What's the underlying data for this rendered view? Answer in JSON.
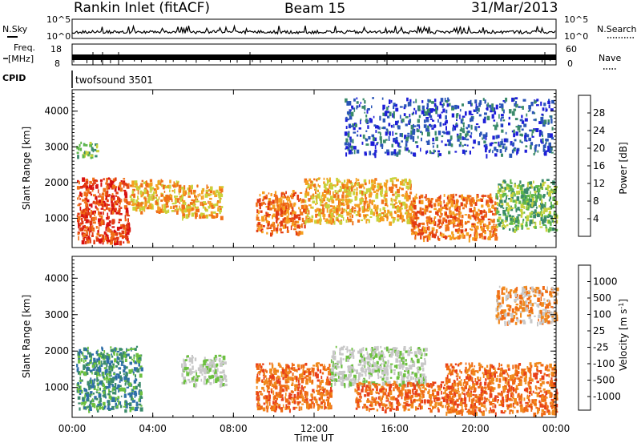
{
  "header": {
    "station": "Rankin Inlet (fitACF)",
    "beam": "Beam 15",
    "date": "31/Mar/2013"
  },
  "status_panels": {
    "nsky_label": "N.Sky",
    "nsearch_label": "N.Search",
    "nsky_ticks": [
      "10^5",
      "10^0"
    ],
    "nsearch_ticks": [
      "10^5",
      "10^0"
    ],
    "freq_label_1": "Freq.",
    "freq_label_2": "[MHz]",
    "freq_ticks": [
      "18",
      "8"
    ],
    "nave_label": "Nave",
    "nave_ticks": [
      "60",
      "0"
    ],
    "cpid_label": "CPID",
    "cpid_value": "twofsound 3501"
  },
  "colors": {
    "power_scale": [
      "#1e1ed8",
      "#2a55b8",
      "#3a8a6a",
      "#5fb84a",
      "#c8d23c",
      "#f5a020",
      "#f07018",
      "#e23a12",
      "#d81010"
    ],
    "velocity_scale": [
      "#2233aa",
      "#2f6fa8",
      "#3a8a6a",
      "#6cc040",
      "#c8c8c8",
      "#c8c8c8",
      "#f08a1e",
      "#f06a14",
      "#e8401a",
      "#d81010"
    ]
  },
  "chart_data": [
    {
      "type": "heatmap",
      "name": "power",
      "ylabel": "Slant Range [km]",
      "colorbar_label": "Power [dB]",
      "colorbar_ticks": [
        "28",
        "24",
        "20",
        "16",
        "12",
        "8",
        "4"
      ],
      "x_ticks": [
        "00:00",
        "04:00",
        "08:00",
        "12:00",
        "16:00",
        "20:00",
        "00:00"
      ],
      "xlim_hours": [
        0,
        24
      ],
      "y_ticks": [
        "4000",
        "3000",
        "2000",
        "1000"
      ],
      "ylim_km": [
        180,
        4600
      ],
      "regions": [
        {
          "x": [
            0.2,
            2.8
          ],
          "y": [
            350,
            2150
          ],
          "level": 7
        },
        {
          "x": [
            2.8,
            5.4
          ],
          "y": [
            1200,
            2100
          ],
          "level": 5
        },
        {
          "x": [
            5.4,
            7.4
          ],
          "y": [
            1050,
            1950
          ],
          "level": 5
        },
        {
          "x": [
            9.1,
            11.5
          ],
          "y": [
            600,
            1800
          ],
          "level": 6
        },
        {
          "x": [
            11.5,
            16.8
          ],
          "y": [
            900,
            2150
          ],
          "level": 5
        },
        {
          "x": [
            16.8,
            21.0
          ],
          "y": [
            450,
            1700
          ],
          "level": 6
        },
        {
          "x": [
            21.0,
            24.0
          ],
          "y": [
            700,
            2100
          ],
          "level": 3
        },
        {
          "x": [
            0.2,
            1.2
          ],
          "y": [
            2750,
            3150
          ],
          "level": 3
        },
        {
          "x": [
            13.5,
            23.8
          ],
          "y": [
            2800,
            4400
          ],
          "level": 1
        }
      ]
    },
    {
      "type": "heatmap",
      "name": "velocity",
      "ylabel": "Slant Range [km]",
      "xlabel": "Time UT",
      "colorbar_label": "Velocity [m s",
      "colorbar_exp": "-1",
      "colorbar_ticks": [
        "1000",
        "500",
        "100",
        "25",
        "-25",
        "-100",
        "-500",
        "-1000"
      ],
      "x_ticks": [
        "00:00",
        "04:00",
        "08:00",
        "12:00",
        "16:00",
        "20:00",
        "00:00"
      ],
      "xlim_hours": [
        0,
        24
      ],
      "y_ticks": [
        "4000",
        "3000",
        "2000",
        "1000"
      ],
      "ylim_km": [
        180,
        4600
      ],
      "regions": [
        {
          "x": [
            0.2,
            3.4
          ],
          "y": [
            400,
            2150
          ],
          "level": 2
        },
        {
          "x": [
            5.4,
            7.6
          ],
          "y": [
            1100,
            1900
          ],
          "level": 4
        },
        {
          "x": [
            9.1,
            12.8
          ],
          "y": [
            400,
            1700
          ],
          "level": 7
        },
        {
          "x": [
            12.8,
            17.5
          ],
          "y": [
            1100,
            2150
          ],
          "level": 4
        },
        {
          "x": [
            14.0,
            19.0
          ],
          "y": [
            400,
            1200
          ],
          "level": 7
        },
        {
          "x": [
            18.5,
            24.0
          ],
          "y": [
            300,
            1700
          ],
          "level": 7
        },
        {
          "x": [
            21.0,
            24.0
          ],
          "y": [
            2800,
            3800
          ],
          "level": 6
        }
      ]
    }
  ]
}
